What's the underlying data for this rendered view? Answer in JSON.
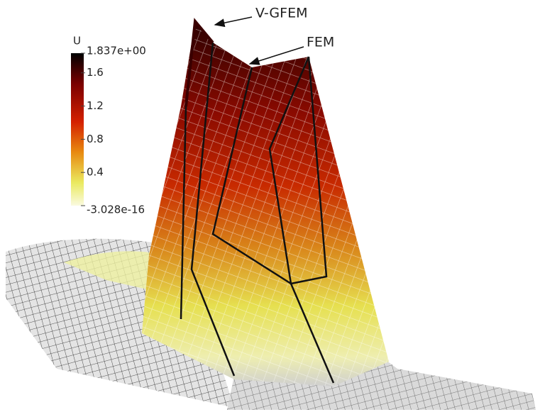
{
  "colorbar": {
    "title": "U",
    "max": {
      "value": 1.837,
      "label": "1.837e+00"
    },
    "min": {
      "value": -3.028e-16,
      "label": "-3.028e-16"
    },
    "ticks": [
      1.6,
      1.2,
      0.8,
      0.4
    ]
  },
  "annotations": {
    "vgfem": "V-GFEM",
    "fem": "FEM"
  }
}
